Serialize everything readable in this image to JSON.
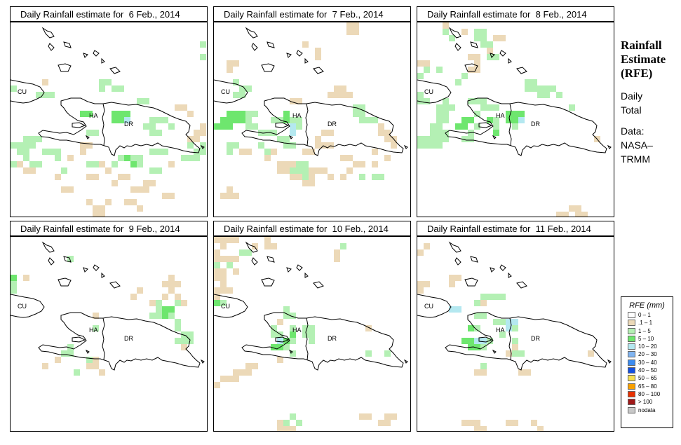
{
  "sidebar": {
    "title_line1": "Rainfall",
    "title_line2": "Estimate",
    "title_line3": "(RFE)",
    "daily": "Daily",
    "total": "Total",
    "data_label": "Data:",
    "source1": "NASA–",
    "source2": "TRMM"
  },
  "legend": {
    "title": "RFE (mm)",
    "items": [
      {
        "label": "0 – 1",
        "color": "#ffffff"
      },
      {
        "label": ".1 – 1",
        "color": "#ecd9b8"
      },
      {
        "label": "1 – 5",
        "color": "#b4f0b4"
      },
      {
        "label": "5 – 10",
        "color": "#6ee66e"
      },
      {
        "label": "10 – 20",
        "color": "#b4e8f0"
      },
      {
        "label": "20 – 30",
        "color": "#80b4f0"
      },
      {
        "label": "30 – 40",
        "color": "#3c8cf0"
      },
      {
        "label": "40 – 50",
        "color": "#1450e0"
      },
      {
        "label": "50 – 65",
        "color": "#f8e050"
      },
      {
        "label": "65 – 80",
        "color": "#f8a000"
      },
      {
        "label": "80 – 100",
        "color": "#e83000"
      },
      {
        "label": "> 100",
        "color": "#a01818"
      },
      {
        "label": "nodata",
        "color": "#c8c8c8"
      }
    ]
  },
  "map_labels": {
    "cuba": "CU",
    "haiti": "HA",
    "dr": "DR"
  },
  "panels": [
    {
      "title": "Daily Rainfall estimate for  6 Feb., 2014"
    },
    {
      "title": "Daily Rainfall estimate for  7 Feb., 2014"
    },
    {
      "title": "Daily Rainfall estimate for  8 Feb., 2014"
    },
    {
      "title": "Daily Rainfall estimate for  9 Feb., 2014"
    },
    {
      "title": "Daily Rainfall estimate for  10 Feb., 2014"
    },
    {
      "title": "Daily Rainfall estimate for  11 Feb., 2014"
    }
  ]
}
